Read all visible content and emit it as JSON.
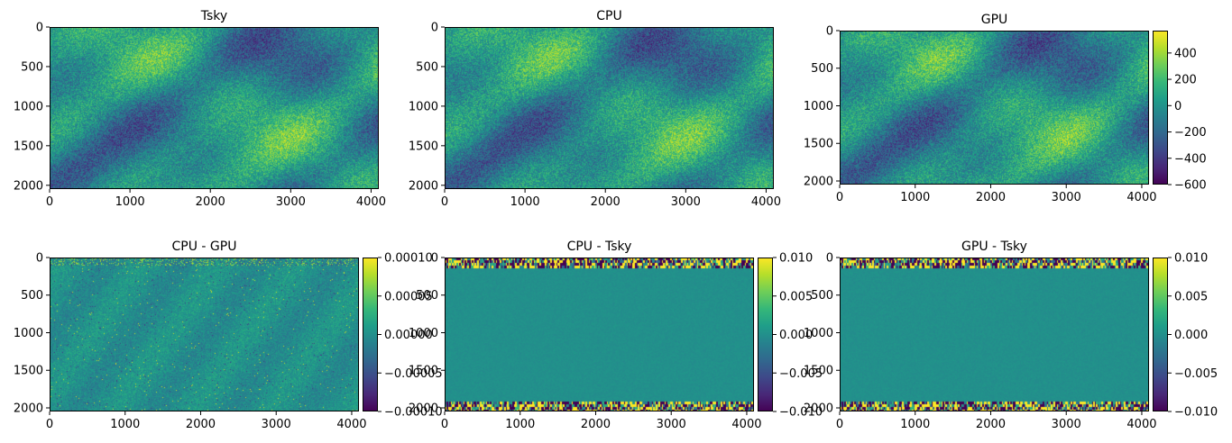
{
  "chart_data": [
    {
      "type": "heatmap",
      "title": "Tsky",
      "xlabel": "",
      "ylabel": "",
      "x_ticks": [
        0,
        1000,
        2000,
        3000,
        4000
      ],
      "y_ticks": [
        0,
        500,
        1000,
        1500,
        2000
      ],
      "xlim": [
        0,
        4096
      ],
      "ylim": [
        2048,
        0
      ],
      "colormap": "viridis",
      "pattern": "sky",
      "colorbar": null
    },
    {
      "type": "heatmap",
      "title": "CPU",
      "xlabel": "",
      "ylabel": "",
      "x_ticks": [
        0,
        1000,
        2000,
        3000,
        4000
      ],
      "y_ticks": [
        0,
        500,
        1000,
        1500,
        2000
      ],
      "xlim": [
        0,
        4096
      ],
      "ylim": [
        2048,
        0
      ],
      "colormap": "viridis",
      "pattern": "sky",
      "colorbar": null
    },
    {
      "type": "heatmap",
      "title": "GPU",
      "xlabel": "",
      "ylabel": "",
      "x_ticks": [
        0,
        1000,
        2000,
        3000,
        4000
      ],
      "y_ticks": [
        0,
        500,
        1000,
        1500,
        2000
      ],
      "xlim": [
        0,
        4096
      ],
      "ylim": [
        2048,
        0
      ],
      "colormap": "viridis",
      "pattern": "sky",
      "colorbar": {
        "range": [
          -600,
          570
        ],
        "ticks": [
          400,
          200,
          0,
          -200,
          -400,
          -600
        ],
        "tick_labels": [
          "400",
          "200",
          "0",
          "−200",
          "−400",
          "−600"
        ]
      }
    },
    {
      "type": "heatmap",
      "title": "CPU - GPU",
      "xlabel": "",
      "ylabel": "",
      "x_ticks": [
        0,
        1000,
        2000,
        3000,
        4000
      ],
      "y_ticks": [
        0,
        500,
        1000,
        1500,
        2000
      ],
      "xlim": [
        0,
        4096
      ],
      "ylim": [
        2048,
        0
      ],
      "colormap": "viridis",
      "pattern": "noise",
      "colorbar": {
        "range": [
          -0.0001,
          0.0001
        ],
        "ticks": [
          0.0001,
          5e-05,
          0,
          -5e-05,
          -0.0001
        ],
        "tick_labels": [
          "0.00010",
          "0.00005",
          "0.00000",
          "−0.00005",
          "−0.00010"
        ]
      }
    },
    {
      "type": "heatmap",
      "title": "CPU - Tsky",
      "xlabel": "",
      "ylabel": "",
      "x_ticks": [
        0,
        1000,
        2000,
        3000,
        4000
      ],
      "y_ticks": [
        0,
        500,
        1000,
        1500,
        2000
      ],
      "xlim": [
        0,
        4096
      ],
      "ylim": [
        2048,
        0
      ],
      "colormap": "viridis",
      "pattern": "band",
      "colorbar": {
        "range": [
          -0.01,
          0.01
        ],
        "ticks": [
          0.01,
          0.005,
          0,
          -0.005,
          -0.01
        ],
        "tick_labels": [
          "0.010",
          "0.005",
          "0.000",
          "−0.005",
          "−0.010"
        ]
      }
    },
    {
      "type": "heatmap",
      "title": "GPU - Tsky",
      "xlabel": "",
      "ylabel": "",
      "x_ticks": [
        0,
        1000,
        2000,
        3000,
        4000
      ],
      "y_ticks": [
        0,
        500,
        1000,
        1500,
        2000
      ],
      "xlim": [
        0,
        4096
      ],
      "ylim": [
        2048,
        0
      ],
      "colormap": "viridis",
      "pattern": "band",
      "colorbar": {
        "range": [
          -0.01,
          0.01
        ],
        "ticks": [
          0.01,
          0.005,
          0,
          -0.005,
          -0.01
        ],
        "tick_labels": [
          "0.010",
          "0.005",
          "0.000",
          "−0.005",
          "−0.010"
        ]
      }
    }
  ],
  "colors": {
    "viridis_stops": [
      "#440154",
      "#482878",
      "#3e4989",
      "#31688e",
      "#26828e",
      "#1f9e89",
      "#35b779",
      "#6ece58",
      "#b5de2b",
      "#fde725"
    ],
    "axis": "#000000",
    "background": "#ffffff"
  }
}
